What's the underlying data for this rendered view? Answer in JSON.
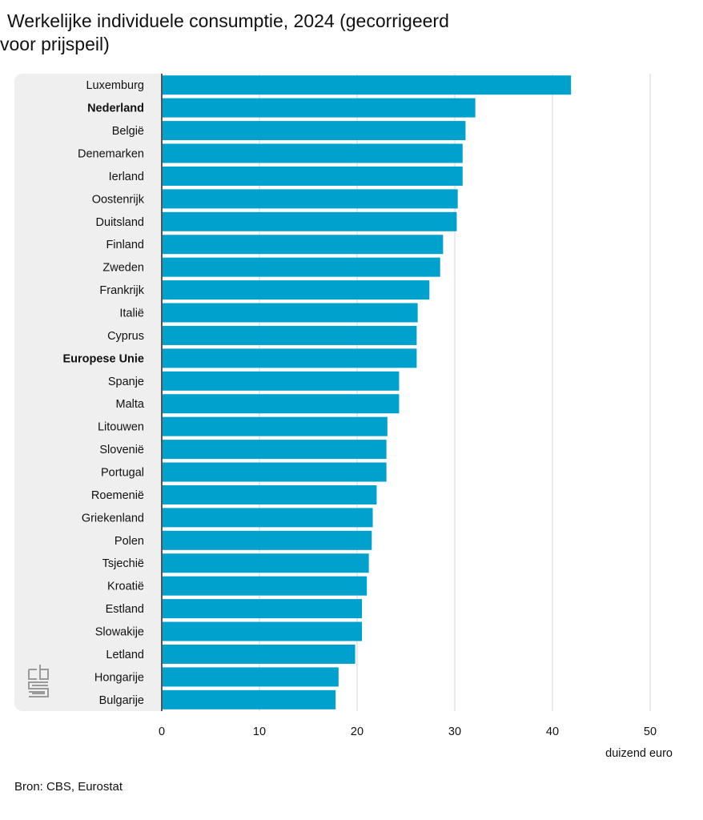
{
  "chart_data": {
    "type": "bar",
    "orientation": "horizontal",
    "title": "Werkelijke individuele consumptie, 2024 (gecorrigeerd voor prijspeil)",
    "title_lines": [
      "Werkelijke individuele consumptie, 2024 (gecorrigeerd",
      "voor prijspeil)"
    ],
    "xlabel": "duizend euro",
    "ylabel": "",
    "xlim": [
      0,
      50
    ],
    "xticks": [
      0,
      10,
      20,
      30,
      40,
      50
    ],
    "grid": true,
    "bar_color": "#00a1cd",
    "categories": [
      "Luxemburg",
      "Nederland",
      "België",
      "Denemarken",
      "Ierland",
      "Oostenrijk",
      "Duitsland",
      "Finland",
      "Zweden",
      "Frankrijk",
      "Italië",
      "Cyprus",
      "Europese Unie",
      "Spanje",
      "Malta",
      "Litouwen",
      "Slovenië",
      "Portugal",
      "Roemenië",
      "Griekenland",
      "Polen",
      "Tsjechië",
      "Kroatië",
      "Estland",
      "Slowakije",
      "Letland",
      "Hongarije",
      "Bulgarije"
    ],
    "highlighted": [
      "Nederland",
      "Europese Unie"
    ],
    "values": [
      41.9,
      32.1,
      31.1,
      30.8,
      30.8,
      30.3,
      30.2,
      28.8,
      28.5,
      27.4,
      26.2,
      26.1,
      26.1,
      24.3,
      24.3,
      23.1,
      23.0,
      23.0,
      22.0,
      21.6,
      21.5,
      21.2,
      21.0,
      20.5,
      20.5,
      19.8,
      18.1,
      17.8
    ],
    "source": "Bron: CBS, Eurostat"
  },
  "logo": {
    "name": "cbs-logo"
  }
}
